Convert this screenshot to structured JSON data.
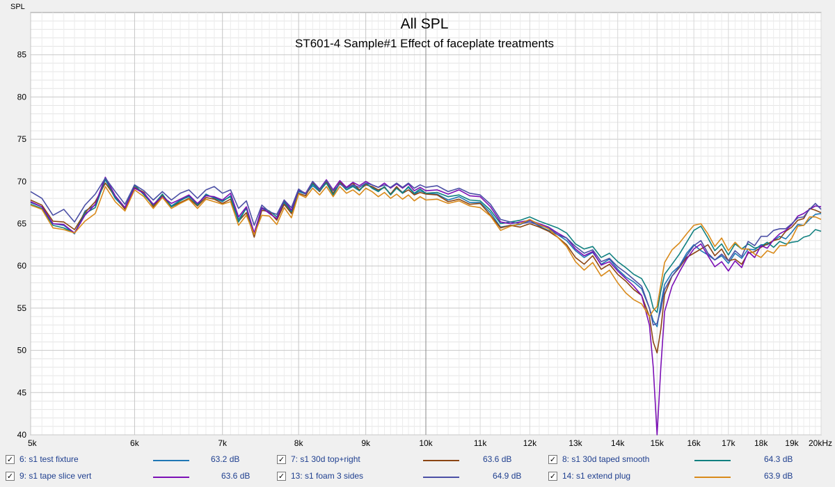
{
  "chart_data": {
    "type": "line",
    "title": "All SPL",
    "subtitle": "ST601-4 Sample#1 Effect of faceplate treatments",
    "ylabel": "SPL",
    "xlabel": "",
    "x_scale": "log",
    "xlim": [
      5000,
      20000
    ],
    "ylim": [
      40,
      90
    ],
    "grid": true,
    "x_ticks": [
      {
        "value": 5000,
        "label": "5k"
      },
      {
        "value": 6000,
        "label": "6k"
      },
      {
        "value": 7000,
        "label": "7k"
      },
      {
        "value": 8000,
        "label": "8k"
      },
      {
        "value": 9000,
        "label": "9k"
      },
      {
        "value": 10000,
        "label": "10k"
      },
      {
        "value": 11000,
        "label": "11k"
      },
      {
        "value": 12000,
        "label": "12k"
      },
      {
        "value": 13000,
        "label": "13k"
      },
      {
        "value": 14000,
        "label": "14k"
      },
      {
        "value": 15000,
        "label": "15k"
      },
      {
        "value": 16000,
        "label": "16k"
      },
      {
        "value": 17000,
        "label": "17k"
      },
      {
        "value": 18000,
        "label": "18k"
      },
      {
        "value": 19000,
        "label": "19k"
      },
      {
        "value": 20000,
        "label": "20kHz"
      }
    ],
    "y_ticks": [
      {
        "value": 40,
        "label": "40"
      },
      {
        "value": 45,
        "label": "45"
      },
      {
        "value": 50,
        "label": "50"
      },
      {
        "value": 55,
        "label": "55"
      },
      {
        "value": 60,
        "label": "60"
      },
      {
        "value": 65,
        "label": "65"
      },
      {
        "value": 70,
        "label": "70"
      },
      {
        "value": 75,
        "label": "75"
      },
      {
        "value": 80,
        "label": "80"
      },
      {
        "value": 85,
        "label": "85"
      }
    ],
    "x": [
      5000,
      5100,
      5200,
      5300,
      5400,
      5500,
      5600,
      5700,
      5800,
      5900,
      6000,
      6100,
      6200,
      6300,
      6400,
      6500,
      6600,
      6700,
      6800,
      6900,
      7000,
      7100,
      7200,
      7300,
      7400,
      7500,
      7600,
      7700,
      7800,
      7900,
      8000,
      8100,
      8200,
      8300,
      8400,
      8500,
      8600,
      8700,
      8800,
      8900,
      9000,
      9100,
      9200,
      9300,
      9400,
      9500,
      9600,
      9700,
      9800,
      9900,
      10000,
      10200,
      10400,
      10600,
      10800,
      11000,
      11200,
      11400,
      11600,
      11800,
      12000,
      12200,
      12400,
      12600,
      12800,
      13000,
      13200,
      13400,
      13600,
      13800,
      14000,
      14200,
      14400,
      14600,
      14800,
      14900,
      15000,
      15100,
      15200,
      15400,
      15600,
      15800,
      16000,
      16200,
      16400,
      16600,
      16800,
      17000,
      17200,
      17400,
      17600,
      17800,
      18000,
      18200,
      18400,
      18600,
      18800,
      19000,
      19200,
      19400,
      19600,
      19800,
      20000
    ],
    "series": [
      {
        "name": "6: s1 test fixture",
        "color": "#1f77b4",
        "level": "63.2 dB",
        "values": [
          67.5,
          67.0,
          65.0,
          64.8,
          63.8,
          66.5,
          67.2,
          70.2,
          68.0,
          66.8,
          69.5,
          68.5,
          67.2,
          68.4,
          67.1,
          67.8,
          68.2,
          67.3,
          68.5,
          68.0,
          67.6,
          68.3,
          65.5,
          66.8,
          63.6,
          66.8,
          66.3,
          65.5,
          67.5,
          66.2,
          68.8,
          68.5,
          69.5,
          68.8,
          69.9,
          68.5,
          69.9,
          69.0,
          69.5,
          69.0,
          69.7,
          69.3,
          68.9,
          69.3,
          68.5,
          69.3,
          68.7,
          69.3,
          68.5,
          68.9,
          68.6,
          68.5,
          67.8,
          68.2,
          67.5,
          67.5,
          66.3,
          64.6,
          64.8,
          64.9,
          65.4,
          64.7,
          64.2,
          63.7,
          63.0,
          61.8,
          61.0,
          61.6,
          60.2,
          60.8,
          59.6,
          58.7,
          58.1,
          57.3,
          55.0,
          53.5,
          52.8,
          55.5,
          57.8,
          59.2,
          60.0,
          61.5,
          62.5,
          61.8,
          61.3,
          60.7,
          61.2,
          60.3,
          61.5,
          60.9,
          62.0,
          61.9,
          62.5,
          62.5,
          63.0,
          63.5,
          63.2,
          64.0,
          64.9,
          64.8,
          65.5,
          66.1,
          66.2
        ]
      },
      {
        "name": "7: s1 30d top+right",
        "color": "#8b4513",
        "level": "63.6 dB",
        "values": [
          67.8,
          67.2,
          65.3,
          65.2,
          64.3,
          66.3,
          67.6,
          69.8,
          68.2,
          66.7,
          69.3,
          68.7,
          67.0,
          68.3,
          67.0,
          67.5,
          68.0,
          67.1,
          68.1,
          67.9,
          67.4,
          67.9,
          65.3,
          66.3,
          63.4,
          66.6,
          66.4,
          65.4,
          67.3,
          66.2,
          68.6,
          68.3,
          69.9,
          68.8,
          70.0,
          68.6,
          69.9,
          69.3,
          69.8,
          69.0,
          69.6,
          69.4,
          69.0,
          69.3,
          68.5,
          69.4,
          68.6,
          69.0,
          68.4,
          68.7,
          68.5,
          68.4,
          67.6,
          67.9,
          67.3,
          67.4,
          66.0,
          64.5,
          64.8,
          64.6,
          65.0,
          64.6,
          64.1,
          63.4,
          62.5,
          61.0,
          60.2,
          61.2,
          59.6,
          60.2,
          59.0,
          58.2,
          57.2,
          56.5,
          54.0,
          51.0,
          49.7,
          52.5,
          56.6,
          58.8,
          59.8,
          61.0,
          61.5,
          62.0,
          62.5,
          61.2,
          62.0,
          60.6,
          60.8,
          60.2,
          61.5,
          61.7,
          62.2,
          62.6,
          63.0,
          63.2,
          64.1,
          64.6,
          65.4,
          65.6,
          66.8,
          66.6,
          66.3
        ]
      },
      {
        "name": "8: s1 30d taped smooth",
        "color": "#108080",
        "level": "64.3 dB",
        "values": [
          67.3,
          66.8,
          64.8,
          64.5,
          63.9,
          66.2,
          66.9,
          70.3,
          68.1,
          66.9,
          69.6,
          68.4,
          67.2,
          68.5,
          67.0,
          67.7,
          68.3,
          67.2,
          68.4,
          68.1,
          67.7,
          68.2,
          65.2,
          66.9,
          63.7,
          66.9,
          66.5,
          65.8,
          67.6,
          66.4,
          68.9,
          68.6,
          69.7,
          68.9,
          69.8,
          68.4,
          69.8,
          69.0,
          69.4,
          68.9,
          69.8,
          69.2,
          68.8,
          69.4,
          68.4,
          69.2,
          68.6,
          69.4,
          68.6,
          69.1,
          68.6,
          68.7,
          68.2,
          68.4,
          67.8,
          67.7,
          66.6,
          65.0,
          65.2,
          65.4,
          65.8,
          65.3,
          64.9,
          64.5,
          63.9,
          62.6,
          62.0,
          62.3,
          61.0,
          61.5,
          60.5,
          59.8,
          59.0,
          58.5,
          56.8,
          55.0,
          54.5,
          57.0,
          59.0,
          60.2,
          61.4,
          62.8,
          64.2,
          64.7,
          63.3,
          61.8,
          62.6,
          61.3,
          62.6,
          62.0,
          62.6,
          62.1,
          62.3,
          62.8,
          62.2,
          62.9,
          62.6,
          62.8,
          62.9,
          63.4,
          63.6,
          64.3,
          64.1
        ]
      },
      {
        "name": "9: s1 tape slice vert",
        "color": "#7b0fb5",
        "level": "63.6 dB",
        "values": [
          67.6,
          67.0,
          65.0,
          64.9,
          63.9,
          66.0,
          67.3,
          70.5,
          68.3,
          66.9,
          69.2,
          68.6,
          67.3,
          68.2,
          67.4,
          67.9,
          68.4,
          67.4,
          68.3,
          68.2,
          67.8,
          68.6,
          65.8,
          67.0,
          63.9,
          66.9,
          66.2,
          65.6,
          67.8,
          66.6,
          69.0,
          68.6,
          70.0,
          69.1,
          70.2,
          69.0,
          70.1,
          69.3,
          69.9,
          69.5,
          70.0,
          69.6,
          69.3,
          69.8,
          69.2,
          69.7,
          69.2,
          69.7,
          68.9,
          69.3,
          68.9,
          69.0,
          68.5,
          69.0,
          68.3,
          68.2,
          67.0,
          65.2,
          65.0,
          65.2,
          65.4,
          65.0,
          64.6,
          63.9,
          63.3,
          62.0,
          61.2,
          61.7,
          60.1,
          60.5,
          59.4,
          58.5,
          57.6,
          56.5,
          53.0,
          48.0,
          40.0,
          48.0,
          54.6,
          57.6,
          59.3,
          60.8,
          62.0,
          62.6,
          61.2,
          59.9,
          60.5,
          59.4,
          60.6,
          59.8,
          61.7,
          61.0,
          62.4,
          62.1,
          63.1,
          63.8,
          64.2,
          64.9,
          65.9,
          66.2,
          66.7,
          67.1,
          67.0
        ]
      },
      {
        "name": "13: s1 foam 3 sides",
        "color": "#4b4fa5",
        "level": "64.9 dB",
        "values": [
          68.8,
          68.0,
          66.0,
          66.7,
          65.2,
          67.2,
          68.5,
          70.4,
          68.8,
          67.3,
          69.6,
          68.9,
          67.8,
          68.8,
          67.8,
          68.6,
          69.0,
          68.0,
          69.0,
          69.4,
          68.6,
          69.0,
          66.8,
          67.7,
          64.8,
          67.2,
          66.4,
          66.1,
          67.8,
          66.9,
          69.1,
          68.5,
          70.0,
          69.0,
          70.1,
          68.9,
          69.7,
          69.2,
          69.6,
          69.3,
          69.8,
          69.6,
          69.3,
          69.6,
          69.3,
          69.8,
          69.3,
          69.8,
          69.2,
          69.6,
          69.3,
          69.5,
          68.8,
          69.2,
          68.6,
          68.4,
          67.3,
          65.5,
          65.2,
          65.0,
          65.2,
          64.8,
          64.5,
          63.7,
          63.3,
          62.3,
          61.5,
          61.9,
          60.5,
          60.9,
          59.9,
          59.2,
          58.4,
          57.6,
          55.0,
          53.0,
          53.2,
          54.8,
          57.2,
          58.8,
          59.9,
          61.2,
          62.4,
          63.0,
          61.5,
          60.7,
          61.4,
          60.6,
          61.8,
          61.1,
          62.9,
          62.4,
          63.5,
          63.5,
          64.2,
          64.4,
          64.4,
          65.0,
          65.7,
          65.8,
          66.7,
          67.4,
          66.7
        ]
      },
      {
        "name": "14: s1 extend plug",
        "color": "#d98a1a",
        "level": "63.9 dB",
        "values": [
          67.2,
          66.7,
          64.5,
          64.3,
          63.9,
          65.3,
          66.2,
          69.4,
          67.6,
          66.5,
          69.0,
          68.2,
          66.8,
          68.1,
          66.8,
          67.4,
          67.9,
          66.8,
          67.9,
          67.6,
          67.3,
          67.6,
          64.8,
          66.0,
          63.7,
          66.0,
          65.9,
          64.9,
          66.9,
          65.7,
          68.5,
          68.1,
          69.2,
          68.4,
          69.4,
          68.2,
          69.4,
          68.6,
          69.0,
          68.4,
          69.2,
          68.8,
          68.2,
          68.7,
          68.0,
          68.5,
          67.9,
          68.4,
          67.7,
          68.2,
          67.8,
          67.9,
          67.4,
          67.7,
          67.1,
          66.9,
          65.9,
          64.2,
          64.7,
          65.0,
          65.5,
          64.9,
          64.4,
          63.4,
          62.3,
          60.5,
          59.5,
          60.4,
          58.8,
          59.5,
          58.0,
          56.8,
          56.0,
          55.5,
          54.0,
          54.7,
          55.2,
          57.8,
          60.4,
          61.9,
          62.7,
          63.8,
          64.8,
          65.0,
          63.8,
          62.3,
          63.3,
          61.8,
          62.8,
          62.0,
          62.0,
          61.4,
          61.0,
          61.8,
          61.5,
          62.4,
          62.4,
          63.3,
          64.7,
          64.8,
          65.8,
          65.8,
          65.5
        ]
      }
    ]
  }
}
